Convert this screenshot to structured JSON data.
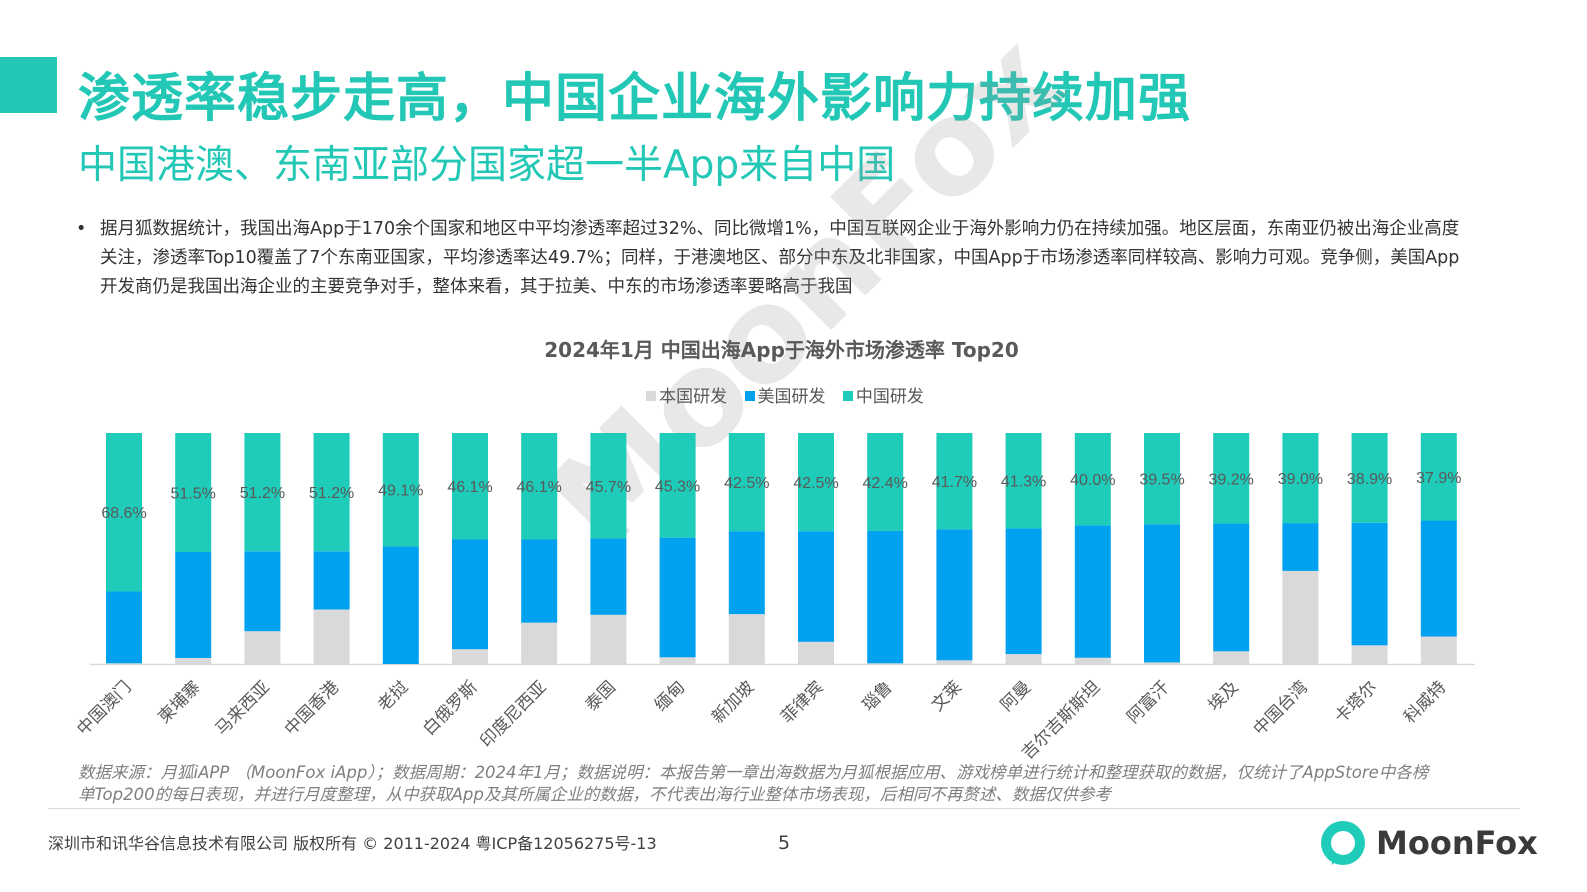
{
  "header": {
    "title": "渗透率稳步走高，中国企业海外影响力持续加强",
    "subtitle": "中国港澳、东南亚部分国家超一半App来自中国"
  },
  "body": {
    "bullet": "•",
    "text": "据月狐数据统计，我国出海App于170余个国家和地区中平均渗透率超过32%、同比微增1%，中国互联网企业于海外影响力仍在持续加强。地区层面，东南亚仍被出海企业高度关注，渗透率Top10覆盖了7个东南亚国家，平均渗透率达49.7%；同样，于港澳地区、部分中东及北非国家，中国App于市场渗透率同样较高、影响力可观。竞争侧，美国App开发商仍是我国出海企业的主要竞争对手，整体来看，其于拉美、中东的市场渗透率要略高于我国"
  },
  "chart_data": {
    "type": "bar",
    "stacked": "100%",
    "title": "2024年1月 中国出海App于海外市场渗透率 Top20",
    "legend_position": "top",
    "grid": false,
    "ylim": [
      0,
      100
    ],
    "categories": [
      "中国澳门",
      "柬埔寨",
      "马来西亚",
      "中国香港",
      "老挝",
      "白俄罗斯",
      "印度尼西亚",
      "泰国",
      "缅甸",
      "新加坡",
      "菲律宾",
      "瑙鲁",
      "文莱",
      "阿曼",
      "吉尔吉斯斯坦",
      "阿富汗",
      "埃及",
      "中国台湾",
      "卡塔尔",
      "科威特"
    ],
    "series": [
      {
        "name": "本国研发",
        "color": "#d9d9d9",
        "values": [
          0.3,
          2.6,
          14.2,
          23.6,
          0.0,
          6.4,
          17.9,
          21.3,
          2.9,
          21.6,
          9.6,
          0.3,
          1.6,
          4.3,
          2.7,
          0.7,
          5.5,
          40.3,
          8.1,
          11.9
        ]
      },
      {
        "name": "美国研发",
        "color": "#00a2ef",
        "values": [
          31.1,
          45.9,
          34.6,
          25.2,
          50.9,
          47.5,
          36.0,
          33.0,
          51.8,
          35.9,
          47.9,
          57.3,
          56.7,
          54.4,
          57.3,
          59.8,
          55.3,
          20.7,
          53.0,
          50.2
        ]
      },
      {
        "name": "中国研发",
        "color": "#1fcbb9",
        "values": [
          68.6,
          51.5,
          51.2,
          51.2,
          49.1,
          46.1,
          46.1,
          45.7,
          45.3,
          42.5,
          42.5,
          42.4,
          41.7,
          41.3,
          40.0,
          39.5,
          39.2,
          39.0,
          38.9,
          37.9
        ]
      }
    ],
    "data_labels": [
      "68.6%",
      "51.5%",
      "51.2%",
      "51.2%",
      "49.1%",
      "46.1%",
      "46.1%",
      "45.7%",
      "45.3%",
      "42.5%",
      "42.5%",
      "42.4%",
      "41.7%",
      "41.3%",
      "40.0%",
      "39.5%",
      "39.2%",
      "39.0%",
      "38.9%",
      "37.9%"
    ]
  },
  "source": {
    "line1": "数据来源：月狐iAPP （MoonFox iApp）；数据周期：2024年1月；数据说明：本报告第一章出海数据为月狐根据应用、游戏榜单进行统计和整理获取的数据，仅统计了AppStore中各榜",
    "line2": "单Top200的每日表现，并进行月度整理，从中获取App及其所属企业的数据，不代表出海行业整体市场表现，后相同不再赘述、数据仅供参考"
  },
  "footer": {
    "copyright": "深圳市和讯华谷信息技术有限公司 版权所有 © 2011-2024 粤ICP备12056275号-13",
    "page": "5",
    "logo_text": "MoonFox",
    "watermark": "MoonFox"
  },
  "colors": {
    "accent": "#22c7b6",
    "china": "#1fcbb9",
    "usa": "#00a2ef",
    "local": "#d9d9d9"
  }
}
